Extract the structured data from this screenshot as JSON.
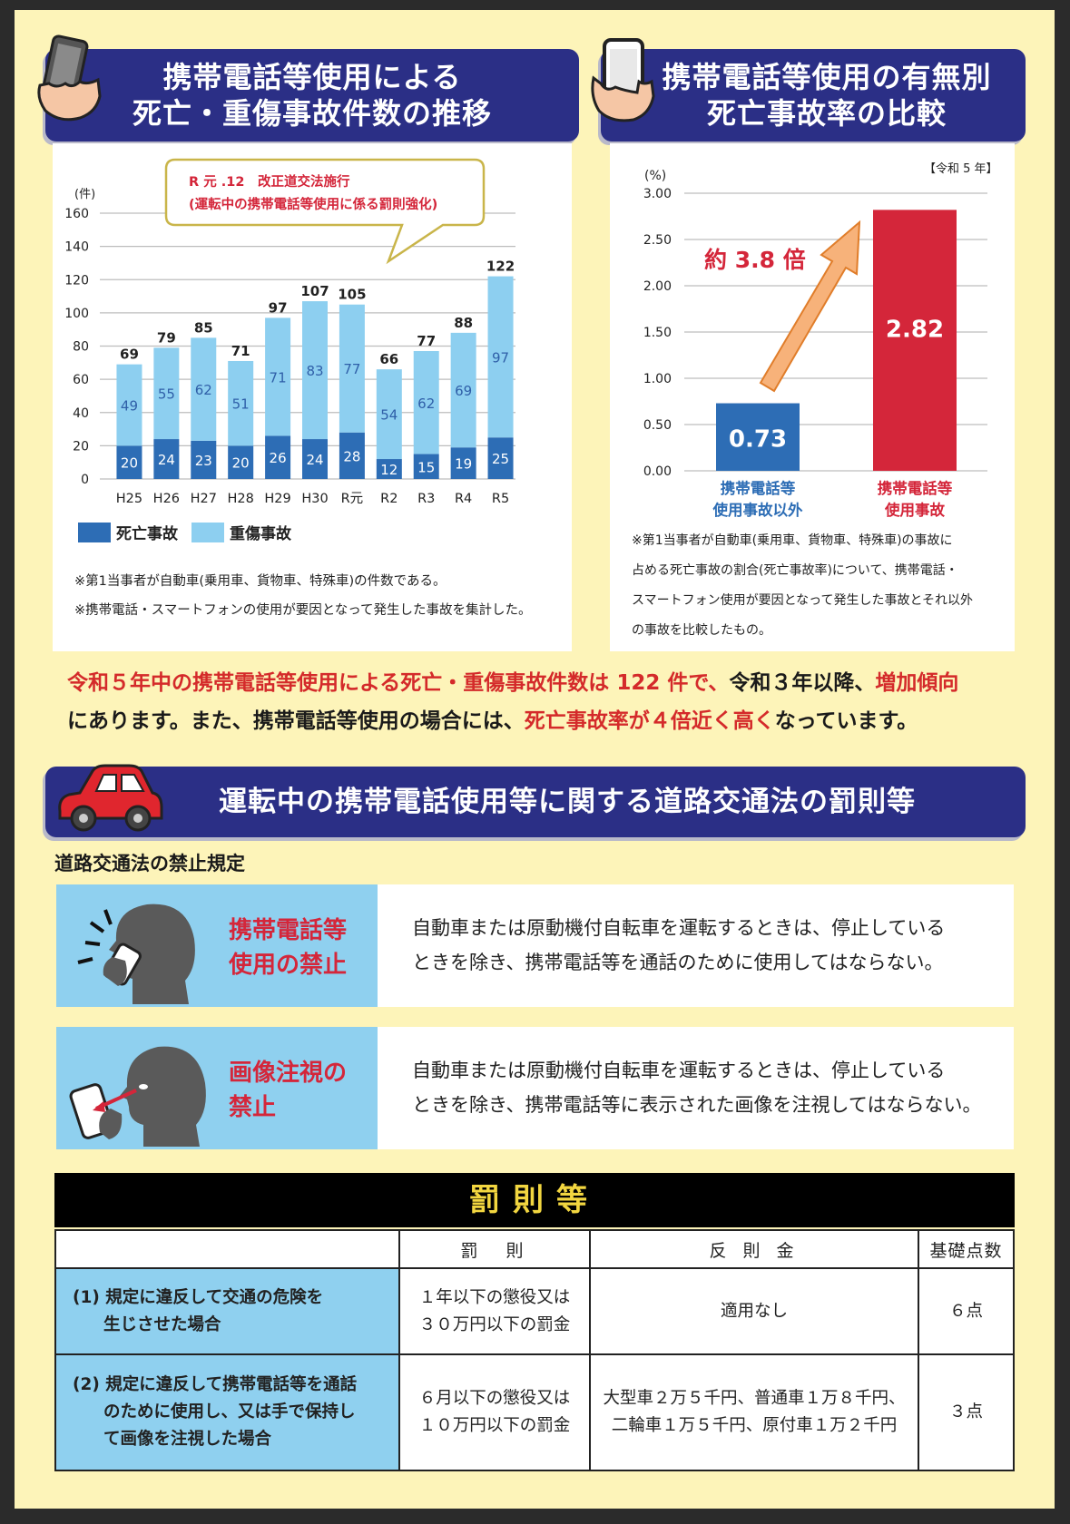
{
  "banner_left": {
    "line1": "携帯電話等使用による",
    "line2": "死亡・重傷事故件数の推移"
  },
  "banner_right": {
    "line1": "携帯電話等使用の有無別",
    "line2": "死亡事故率の比較"
  },
  "banner_rules": {
    "title": "運転中の携帯電話使用等に関する道路交通法の罰則等"
  },
  "colors": {
    "navy": "#2b2f86",
    "red": "#d4263a",
    "dark_blue": "#2d6db5",
    "light_blue": "#8dcff0",
    "yellow": "#fdf4b9"
  },
  "chart_data": [
    {
      "type": "bar",
      "stacked": true,
      "ylabel": "(件)",
      "ylim": [
        0,
        160
      ],
      "yticks": [
        0,
        20,
        40,
        60,
        80,
        100,
        120,
        140,
        160
      ],
      "categories": [
        "H25",
        "H26",
        "H27",
        "H28",
        "H29",
        "H30",
        "R元",
        "R2",
        "R3",
        "R4",
        "R5"
      ],
      "series": [
        {
          "name": "死亡事故",
          "color": "#2d6db5",
          "values": [
            20,
            24,
            23,
            20,
            26,
            24,
            28,
            12,
            15,
            19,
            25
          ]
        },
        {
          "name": "重傷事故",
          "color": "#8dcff0",
          "values": [
            49,
            55,
            62,
            51,
            71,
            83,
            77,
            54,
            62,
            69,
            97
          ]
        }
      ],
      "totals": [
        69,
        79,
        85,
        71,
        97,
        107,
        105,
        66,
        77,
        88,
        122
      ],
      "annotation": {
        "line1": "R 元 .12　改正道交法施行",
        "line2": "(運転中の携帯電話等使用に係る罰則強化)"
      },
      "legend_position": "bottom-left",
      "grid": true
    },
    {
      "type": "bar",
      "ylabel": "(%)",
      "ylim": [
        0,
        3.0
      ],
      "yticks": [
        "0.00",
        "0.50",
        "1.00",
        "1.50",
        "2.00",
        "2.50",
        "3.00"
      ],
      "categories": [
        {
          "line1": "携帯電話等",
          "line2": "使用事故以外"
        },
        {
          "line1": "携帯電話等",
          "line2": "使用事故"
        }
      ],
      "values": [
        0.73,
        2.82
      ],
      "value_labels": [
        "0.73",
        "2.82"
      ],
      "bar_colors": [
        "#2d6db5",
        "#d4263a"
      ],
      "period": "【令和 5 年】",
      "annotation": "約 3.8 倍",
      "grid": true
    }
  ],
  "notes_left": [
    "※第1当事者が自動車(乗用車、貨物車、特殊車)の件数である。",
    "※携帯電話・スマートフォンの使用が要因となって発生した事故を集計した。"
  ],
  "notes_right": [
    "※第1当事者が自動車(乗用車、貨物車、特殊車)の事故に",
    "占める死亡事故の割合(死亡事故率)について、携帯電話・",
    "スマートフォン使用が要因となって発生した事故とそれ以外",
    "の事故を比較したもの。"
  ],
  "summary": {
    "l1a": "令和５年中の携帯電話等使用による死亡・重傷事故件数は 122 件で、",
    "l1b": "令和３年以降、",
    "l1c": "増加傾向",
    "l2a": "にあります。また、携帯電話等使用の場合には、",
    "l2b": "死亡事故率が４倍近く高く",
    "l2c": "なっています。"
  },
  "rules_heading": "道路交通法の禁止規定",
  "rules": [
    {
      "title1": "携帯電話等",
      "title2": "使用の禁止",
      "text1": "自動車または原動機付自転車を運転するときは、停止している",
      "text2": "ときを除き、携帯電話等を通話のために使用してはならない。"
    },
    {
      "title1": "画像注視の",
      "title2": "禁止",
      "text1": "自動車または原動機付自転車を運転するときは、停止している",
      "text2": "ときを除き、携帯電話等に表示された画像を注視してはならない。"
    }
  ],
  "penalties": {
    "title": "罰則等",
    "headers": [
      "",
      "罰　則",
      "反 則 金",
      "基礎点数"
    ],
    "rows": [
      {
        "case1": "(1) 規定に違反して交通の危険を",
        "case2": "生じさせた場合",
        "case3": "",
        "pen1": "１年以下の懲役又は",
        "pen2": "３０万円以下の罰金",
        "fine1": "適用なし",
        "fine2": "",
        "points": "６点"
      },
      {
        "case1": "(2) 規定に違反して携帯電話等を通話",
        "case2": "のために使用し、又は手で保持し",
        "case3": "て画像を注視した場合",
        "pen1": "６月以下の懲役又は",
        "pen2": "１０万円以下の罰金",
        "fine1": "大型車２万５千円、普通車１万８千円、",
        "fine2": "二輪車１万５千円、原付車１万２千円",
        "points": "３点"
      }
    ]
  }
}
